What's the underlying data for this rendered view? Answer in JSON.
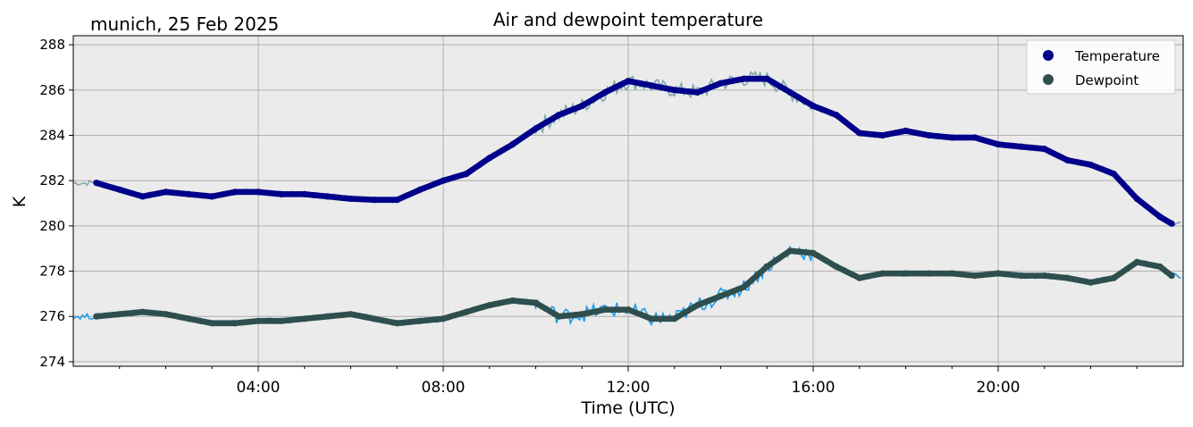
{
  "chart_data": {
    "type": "line",
    "title": "Air and dewpoint temperature",
    "subtitle": "munich, 25 Feb 2025",
    "xlabel": "Time (UTC)",
    "ylabel": "K",
    "xlim": [
      "00:00",
      "24:00"
    ],
    "ylim": [
      273.8,
      288.4
    ],
    "x_ticks": [
      "04:00",
      "08:00",
      "12:00",
      "16:00",
      "20:00"
    ],
    "y_ticks": [
      "274",
      "276",
      "278",
      "280",
      "282",
      "284",
      "286",
      "288"
    ],
    "grid": true,
    "legend_position": "top-right",
    "colors": {
      "temperature": "#00008b",
      "temperature_raw": "#7fa8a8",
      "dewpoint": "#2f4f4f",
      "dewpoint_raw": "#1e9be8",
      "plot_background": "#ebebeb",
      "grid": "#b0b0b0"
    },
    "series": [
      {
        "name": "Temperature",
        "marker": "circle",
        "x": [
          "00:30",
          "01:00",
          "01:30",
          "02:00",
          "02:30",
          "03:00",
          "03:30",
          "04:00",
          "04:30",
          "05:00",
          "05:30",
          "06:00",
          "06:30",
          "07:00",
          "07:30",
          "08:00",
          "08:30",
          "09:00",
          "09:30",
          "10:00",
          "10:30",
          "11:00",
          "11:30",
          "12:00",
          "12:30",
          "13:00",
          "13:30",
          "14:00",
          "14:30",
          "15:00",
          "15:30",
          "16:00",
          "16:30",
          "17:00",
          "17:30",
          "18:00",
          "18:30",
          "19:00",
          "19:30",
          "20:00",
          "20:30",
          "21:00",
          "21:30",
          "22:00",
          "22:30",
          "23:00",
          "23:30",
          "23:45"
        ],
        "values": [
          281.9,
          281.6,
          281.3,
          281.5,
          281.4,
          281.3,
          281.5,
          281.5,
          281.4,
          281.4,
          281.3,
          281.2,
          281.15,
          281.15,
          281.6,
          282.0,
          282.3,
          283.0,
          283.6,
          284.3,
          284.9,
          285.3,
          285.9,
          286.4,
          286.2,
          286.0,
          285.9,
          286.3,
          286.5,
          286.5,
          285.9,
          285.3,
          284.9,
          284.1,
          284.0,
          284.2,
          284.0,
          283.9,
          283.9,
          283.6,
          283.5,
          283.4,
          282.9,
          282.7,
          282.3,
          281.2,
          280.4,
          280.1
        ]
      },
      {
        "name": "Dewpoint",
        "marker": "circle",
        "x": [
          "00:30",
          "01:00",
          "01:30",
          "02:00",
          "02:30",
          "03:00",
          "03:30",
          "04:00",
          "04:30",
          "05:00",
          "05:30",
          "06:00",
          "06:30",
          "07:00",
          "07:30",
          "08:00",
          "08:30",
          "09:00",
          "09:30",
          "10:00",
          "10:30",
          "11:00",
          "11:30",
          "12:00",
          "12:30",
          "13:00",
          "13:30",
          "14:00",
          "14:30",
          "15:00",
          "15:30",
          "16:00",
          "16:30",
          "17:00",
          "17:30",
          "18:00",
          "18:30",
          "19:00",
          "19:30",
          "20:00",
          "20:30",
          "21:00",
          "21:30",
          "22:00",
          "22:30",
          "23:00",
          "23:30",
          "23:45"
        ],
        "values": [
          276.0,
          276.1,
          276.2,
          276.1,
          275.9,
          275.7,
          275.7,
          275.8,
          275.8,
          275.9,
          276.0,
          276.1,
          275.9,
          275.7,
          275.8,
          275.9,
          276.2,
          276.5,
          276.7,
          276.6,
          276.0,
          276.1,
          276.3,
          276.3,
          275.9,
          275.9,
          276.5,
          276.9,
          277.3,
          278.2,
          278.9,
          278.8,
          278.2,
          277.7,
          277.9,
          277.9,
          277.9,
          277.9,
          277.8,
          277.9,
          277.8,
          277.8,
          277.7,
          277.5,
          277.7,
          278.4,
          278.2,
          277.8
        ]
      }
    ]
  }
}
